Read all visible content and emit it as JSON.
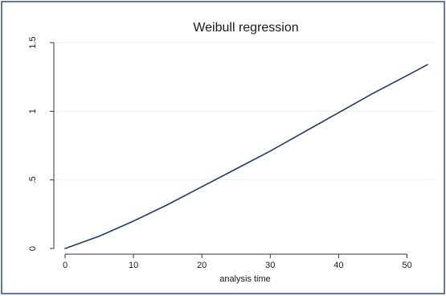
{
  "chart_data": {
    "type": "line",
    "title": "Weibull regression",
    "xlabel": "analysis time",
    "ylabel": "",
    "xlim": [
      0,
      53
    ],
    "ylim": [
      0,
      1.5
    ],
    "x_ticks": [
      0,
      10,
      20,
      30,
      40,
      50
    ],
    "x_tick_labels": [
      "0",
      "10",
      "20",
      "30",
      "40",
      "50"
    ],
    "y_ticks": [
      0,
      0.5,
      1,
      1.5
    ],
    "y_tick_labels": [
      "0",
      ".5",
      "1",
      "1.5"
    ],
    "grid": "horizontal",
    "legend": "none",
    "series": [
      {
        "x": [
          0,
          5,
          10,
          15,
          20,
          25,
          30,
          35,
          40,
          45,
          50,
          53
        ],
        "values": [
          0,
          0.09,
          0.2,
          0.32,
          0.45,
          0.58,
          0.71,
          0.85,
          0.99,
          1.13,
          1.26,
          1.34
        ]
      }
    ]
  },
  "colors": {
    "outer_background": "#ffffff",
    "outer_border": "#2e4d7b",
    "plot_background": "#ffffff",
    "gridline": "#e7eef5",
    "axis": "#333333",
    "line": "#1f3b63"
  }
}
